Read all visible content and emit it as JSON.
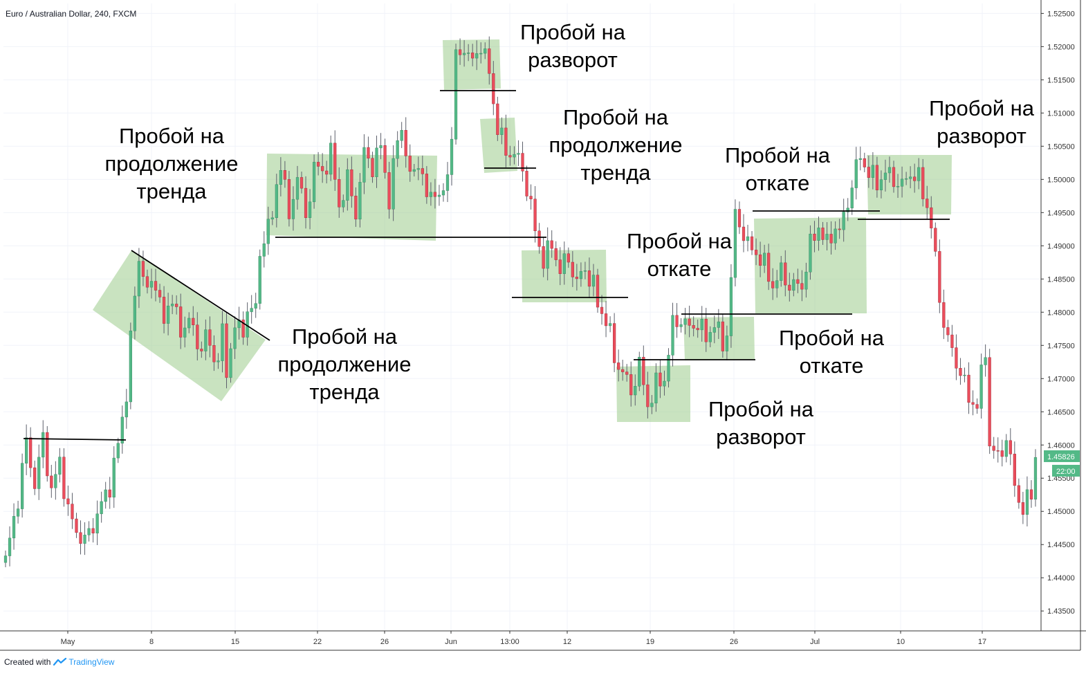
{
  "header": {
    "symbol_title": "Euro / Australian Dollar, 240, FXCM"
  },
  "footer": {
    "created_with": "Created with",
    "brand": "TradingView"
  },
  "colors": {
    "bull": "#53b987",
    "bear": "#eb4d5c",
    "wick": "#5d606b",
    "zone": "#a5d196",
    "grid": "#f0f3fa",
    "axis": "#333333",
    "price_badge": "#53b987"
  },
  "chart_data": {
    "type": "candlestick",
    "title": "Euro / Australian Dollar, 240, FXCM",
    "xlabel": "",
    "ylabel": "",
    "ylim": [
      1.432,
      1.5265
    ],
    "grid": true,
    "x_ticks": [
      "May",
      "8",
      "15",
      "22",
      "26",
      "Jun",
      "13:00",
      "12",
      "19",
      "26",
      "Jul",
      "10",
      "17"
    ],
    "y_ticks": [
      "1.52500",
      "1.52000",
      "1.51500",
      "1.51000",
      "1.50500",
      "1.50000",
      "1.49500",
      "1.49000",
      "1.48500",
      "1.48000",
      "1.47500",
      "1.47000",
      "1.46500",
      "1.46000",
      "1.45500",
      "1.45000",
      "1.44500",
      "1.44000",
      "1.43500"
    ],
    "last_price": "1.45826",
    "countdown": "22:00",
    "close_path": [
      [
        0,
        1.4425
      ],
      [
        3,
        1.452
      ],
      [
        5,
        1.4605
      ],
      [
        7,
        1.454
      ],
      [
        9,
        1.461
      ],
      [
        11,
        1.453
      ],
      [
        13,
        1.4575
      ],
      [
        15,
        1.45
      ],
      [
        17,
        1.447
      ],
      [
        19,
        1.4455
      ],
      [
        21,
        1.448
      ],
      [
        23,
        1.451
      ],
      [
        25,
        1.454
      ],
      [
        27,
        1.46
      ],
      [
        29,
        1.468
      ],
      [
        30,
        1.476
      ],
      [
        31,
        1.482
      ],
      [
        32,
        1.4885
      ],
      [
        34,
        1.483
      ],
      [
        36,
        1.485
      ],
      [
        38,
        1.478
      ],
      [
        40,
        1.483
      ],
      [
        42,
        1.476
      ],
      [
        44,
        1.48
      ],
      [
        46,
        1.474
      ],
      [
        48,
        1.477
      ],
      [
        50,
        1.472
      ],
      [
        52,
        1.477
      ],
      [
        53,
        1.47
      ],
      [
        55,
        1.479
      ],
      [
        57,
        1.476
      ],
      [
        58,
        1.481
      ],
      [
        60,
        1.4805
      ],
      [
        61,
        1.488
      ],
      [
        62,
        1.492
      ],
      [
        64,
        1.494
      ],
      [
        65,
        1.499
      ],
      [
        66,
        1.503
      ],
      [
        68,
        1.494
      ],
      [
        70,
        1.501
      ],
      [
        72,
        1.494
      ],
      [
        74,
        1.502
      ],
      [
        76,
        1.501
      ],
      [
        78,
        1.504
      ],
      [
        80,
        1.496
      ],
      [
        82,
        1.5
      ],
      [
        84,
        1.495
      ],
      [
        86,
        1.504
      ],
      [
        88,
        1.502
      ],
      [
        90,
        1.505
      ],
      [
        92,
        1.497
      ],
      [
        94,
        1.506
      ],
      [
        95,
        1.508
      ],
      [
        97,
        1.5
      ],
      [
        99,
        1.503
      ],
      [
        101,
        1.497
      ],
      [
        103,
        1.499
      ],
      [
        104,
        1.496
      ],
      [
        106,
        1.501
      ],
      [
        107,
        1.507
      ],
      [
        108,
        1.518
      ],
      [
        110,
        1.52
      ],
      [
        112,
        1.5175
      ],
      [
        114,
        1.5205
      ],
      [
        116,
        1.516
      ],
      [
        117,
        1.5115
      ],
      [
        118,
        1.508
      ],
      [
        120,
        1.504
      ],
      [
        122,
        1.504
      ],
      [
        124,
        1.5015
      ],
      [
        126,
        1.496
      ],
      [
        127,
        1.492
      ],
      [
        129,
        1.488
      ],
      [
        131,
        1.49
      ],
      [
        133,
        1.4865
      ],
      [
        135,
        1.488
      ],
      [
        137,
        1.4845
      ],
      [
        139,
        1.4865
      ],
      [
        141,
        1.484
      ],
      [
        142,
        1.481
      ],
      [
        144,
        1.479
      ],
      [
        145,
        1.4765
      ],
      [
        146,
        1.473
      ],
      [
        148,
        1.471
      ],
      [
        150,
        1.468
      ],
      [
        152,
        1.472
      ],
      [
        154,
        1.466
      ],
      [
        156,
        1.469
      ],
      [
        158,
        1.47
      ],
      [
        159,
        1.474
      ],
      [
        160,
        1.478
      ],
      [
        162,
        1.479
      ],
      [
        164,
        1.4775
      ],
      [
        166,
        1.4785
      ],
      [
        168,
        1.476
      ],
      [
        170,
        1.4785
      ],
      [
        172,
        1.475
      ],
      [
        173,
        1.477
      ],
      [
        174,
        1.485
      ],
      [
        175,
        1.4945
      ],
      [
        176,
        1.4935
      ],
      [
        178,
        1.49
      ],
      [
        180,
        1.489
      ],
      [
        182,
        1.487
      ],
      [
        184,
        1.484
      ],
      [
        186,
        1.486
      ],
      [
        188,
        1.484
      ],
      [
        190,
        1.484
      ],
      [
        191,
        1.484
      ],
      [
        193,
        1.49
      ],
      [
        195,
        1.493
      ],
      [
        197,
        1.49
      ],
      [
        199,
        1.493
      ],
      [
        200,
        1.492
      ],
      [
        202,
        1.4965
      ],
      [
        203,
        1.4995
      ],
      [
        205,
        1.5035
      ],
      [
        207,
        1.501
      ],
      [
        209,
        1.4995
      ],
      [
        211,
        1.501
      ],
      [
        213,
        1.5
      ],
      [
        215,
        1.499
      ],
      [
        217,
        1.501
      ],
      [
        219,
        1.5
      ],
      [
        221,
        1.496
      ],
      [
        222,
        1.493
      ],
      [
        223,
        1.4875
      ],
      [
        225,
        1.478
      ],
      [
        227,
        1.474
      ],
      [
        229,
        1.471
      ],
      [
        231,
        1.467
      ],
      [
        233,
        1.466
      ],
      [
        235,
        1.4745
      ],
      [
        236,
        1.46
      ],
      [
        238,
        1.458
      ],
      [
        240,
        1.461
      ],
      [
        242,
        1.454
      ],
      [
        244,
        1.45
      ],
      [
        246,
        1.453
      ],
      [
        247,
        1.4583
      ]
    ],
    "annotations": [
      {
        "text": "Пробой на\nпродолжение\nтренда"
      },
      {
        "text": "Пробой на\nпродолжение\nтренда"
      },
      {
        "text": "Пробой на\nразворот"
      },
      {
        "text": "Пробой на\nпродолжение\nтренда"
      },
      {
        "text": "Пробой на\nоткате"
      },
      {
        "text": "Пробой на\nразворот"
      },
      {
        "text": "Пробой на\nоткате"
      },
      {
        "text": "Пробой на\nоткате"
      },
      {
        "text": "Пробой на\nразворот"
      }
    ]
  }
}
